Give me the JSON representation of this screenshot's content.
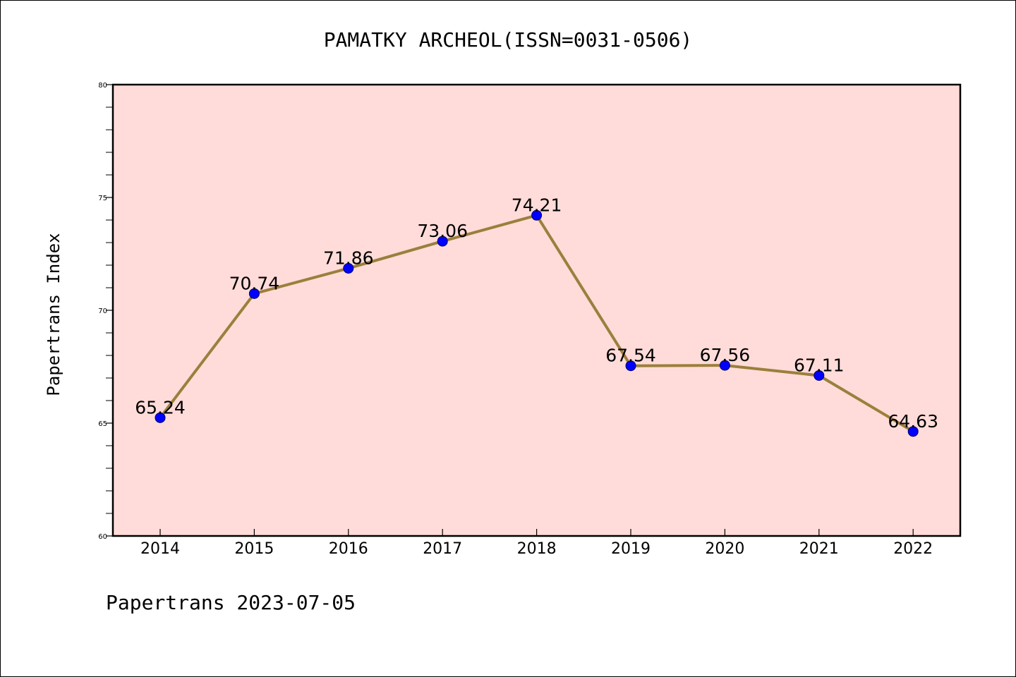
{
  "footer": "Papertrans 2023-07-05",
  "chart_data": {
    "type": "line",
    "title": "PAMATKY ARCHEOL(ISSN=0031-0506)",
    "xlabel": "",
    "ylabel": "Papertrans Index",
    "ylim": [
      60,
      80
    ],
    "yticks": [
      60,
      65,
      70,
      75,
      80
    ],
    "grid": false,
    "legend": "none",
    "categories": [
      "2014",
      "2015",
      "2016",
      "2017",
      "2018",
      "2019",
      "2020",
      "2021",
      "2022"
    ],
    "series": [
      {
        "values": [
          65.24,
          70.74,
          71.86,
          73.06,
          74.21,
          67.54,
          67.56,
          67.11,
          64.63
        ],
        "labels": [
          "65.24",
          "70.74",
          "71.86",
          "73.06",
          "74.21",
          "67.54",
          "67.56",
          "67.11",
          "64.63"
        ],
        "line_color": "#9b7f3c",
        "marker_color": "#0000ff"
      }
    ],
    "plot_background": "#ffdcd9"
  }
}
